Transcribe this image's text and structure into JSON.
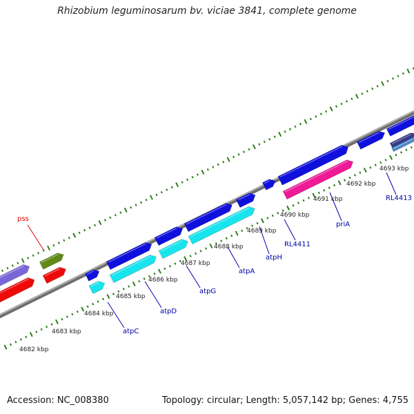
{
  "title": "Rhizobium leguminosarum bv. viciae 3841, complete genome",
  "accession": "Accession: NC_008380",
  "topology": "Topology: circular; Length: 5,057,142 bp; Genes: 4,755",
  "kbp_labels": [
    "4682 kbp",
    "4683 kbp",
    "4684 kbp",
    "4685 kbp",
    "4686 kbp",
    "4687 kbp",
    "4688 kbp",
    "4689 kbp",
    "4690 kbp",
    "4691 kbp",
    "4692 kbp",
    "4693 kbp"
  ],
  "gene_labels": [
    {
      "name": "pss",
      "color": "#e00000"
    },
    {
      "name": "atpC",
      "color": "#0000aa"
    },
    {
      "name": "atpD",
      "color": "#0000aa"
    },
    {
      "name": "atpG",
      "color": "#0000aa"
    },
    {
      "name": "atpA",
      "color": "#0000aa"
    },
    {
      "name": "atpH",
      "color": "#0000aa"
    },
    {
      "name": "RL4411",
      "color": "#0000aa"
    },
    {
      "name": "priA",
      "color": "#0000aa"
    },
    {
      "name": "RL4413",
      "color": "#0000aa"
    }
  ],
  "colors": {
    "backbone": "#8a8a8a",
    "tick": "#2e7d1a",
    "forward_gene": "#1010dd",
    "reverse_gene": "#18e4ee",
    "pss_gene": "#5f8a18",
    "red_gene": "#ee0a0a",
    "purple_gene": "#7a66d8",
    "magenta_gene": "#ee1a98",
    "navy_gene": "#3a3a8a",
    "steel_gene": "#4a88c8"
  }
}
